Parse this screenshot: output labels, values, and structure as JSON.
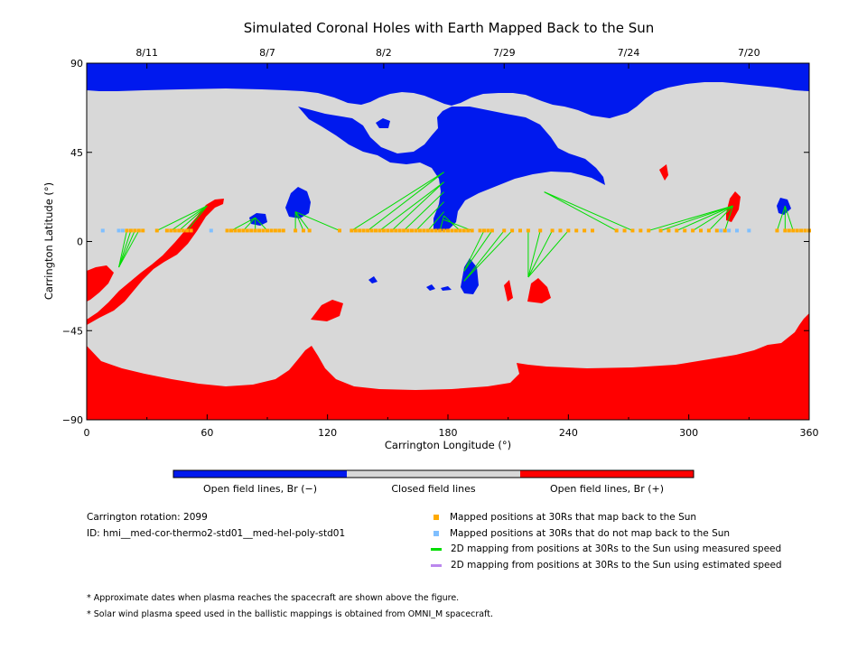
{
  "title": "Simulated Coronal Holes with Earth Mapped Back to the Sun",
  "chart_data": {
    "type": "scatter",
    "title": "Simulated Coronal Holes with Earth Mapped Back to the Sun",
    "xlabel": "Carrington Longitude (°)",
    "ylabel": "Carrington Latitude (°)",
    "xlim": [
      0,
      360
    ],
    "ylim": [
      -90,
      90
    ],
    "xticks": [
      "0",
      "60",
      "120",
      "180",
      "240",
      "300",
      "360"
    ],
    "yticks": [
      "90",
      "45",
      "0",
      "−45",
      "−90"
    ],
    "top_axis_dates": [
      {
        "label": "8/11",
        "lon": 30
      },
      {
        "label": "8/7",
        "lon": 90
      },
      {
        "label": "8/2",
        "lon": 148
      },
      {
        "label": "7/29",
        "lon": 208
      },
      {
        "label": "7/24",
        "lon": 270
      },
      {
        "label": "7/20",
        "lon": 330
      }
    ],
    "colors": {
      "open_negative": "#0019ee",
      "closed": "#d8d8d8",
      "open_positive": "#ff0000",
      "mapped": "#ffaa00",
      "not_mapped": "#7fbfff",
      "measured_line": "#00dd00",
      "estimated_line": "#bb88ee"
    },
    "colorbar_labels": [
      "Open field lines, Br (−)",
      "Closed field lines",
      "Open field lines, Br (+)"
    ],
    "mapped_positions_lat": 5.5,
    "mapped_positions_lon": [
      20,
      22,
      24,
      26,
      28,
      35,
      40,
      42,
      44,
      46,
      48,
      50,
      52,
      70,
      72,
      74,
      76,
      78,
      80,
      82,
      84,
      86,
      88,
      90,
      92,
      94,
      96,
      98,
      104,
      108,
      111,
      126,
      132,
      134,
      136,
      138,
      140,
      142,
      144,
      146,
      148,
      150,
      152,
      154,
      156,
      158,
      160,
      162,
      164,
      166,
      168,
      170,
      172,
      174,
      176,
      178,
      180,
      182,
      184,
      186,
      188,
      190,
      192,
      196,
      198,
      200,
      202,
      208,
      212,
      216,
      220,
      226,
      232,
      236,
      240,
      244,
      248,
      252,
      264,
      268,
      272,
      276,
      280,
      286,
      290,
      294,
      298,
      302,
      306,
      310,
      314,
      318,
      344,
      348,
      350,
      352,
      354,
      356,
      358,
      360
    ],
    "not_mapped_lon": [
      8,
      16,
      18,
      62,
      316,
      320,
      324,
      330
    ],
    "field_lines_measured": [
      {
        "from_lon": 26,
        "to_lat": -13
      },
      {
        "from_lon": 24,
        "to_lat": -13
      },
      {
        "from_lon": 22,
        "to_lat": -13
      },
      {
        "from_lon": 20,
        "to_lat": -13
      },
      {
        "from_lon": 35,
        "to_lat": 18
      },
      {
        "from_lon": 42,
        "to_lat": 18
      },
      {
        "from_lon": 46,
        "to_lat": 18
      },
      {
        "from_lon": 50,
        "to_lat": 18
      },
      {
        "from_lon": 72,
        "to_lat": 12
      },
      {
        "from_lon": 78,
        "to_lat": 12
      },
      {
        "from_lon": 84,
        "to_lat": 12
      },
      {
        "from_lon": 90,
        "to_lat": 12
      },
      {
        "from_lon": 104,
        "to_lat": 15
      },
      {
        "from_lon": 108,
        "to_lat": 15
      },
      {
        "from_lon": 111,
        "to_lat": 15
      },
      {
        "from_lon": 126,
        "to_lat": 15
      },
      {
        "from_lon": 132,
        "to_lat": 35
      },
      {
        "from_lon": 140,
        "to_lat": 35
      },
      {
        "from_lon": 146,
        "to_lat": 30
      },
      {
        "from_lon": 152,
        "to_lat": 30
      },
      {
        "from_lon": 158,
        "to_lat": 25
      },
      {
        "from_lon": 164,
        "to_lat": 20
      },
      {
        "from_lon": 170,
        "to_lat": 15
      },
      {
        "from_lon": 176,
        "to_lat": 13
      },
      {
        "from_lon": 186,
        "to_lat": 13
      },
      {
        "from_lon": 192,
        "to_lat": 11
      },
      {
        "from_lon": 198,
        "to_lat": -15
      },
      {
        "from_lon": 202,
        "to_lat": -15
      },
      {
        "from_lon": 208,
        "to_lat": -20
      },
      {
        "from_lon": 212,
        "to_lat": -20
      },
      {
        "from_lon": 220,
        "to_lat": -18
      },
      {
        "from_lon": 226,
        "to_lat": -18
      },
      {
        "from_lon": 232,
        "to_lat": -18
      },
      {
        "from_lon": 240,
        "to_lat": -18
      },
      {
        "from_lon": 264,
        "to_lat": 25
      },
      {
        "from_lon": 272,
        "to_lat": 25
      },
      {
        "from_lon": 280,
        "to_lat": 18
      },
      {
        "from_lon": 286,
        "to_lat": 18
      },
      {
        "from_lon": 294,
        "to_lat": 18
      },
      {
        "from_lon": 302,
        "to_lat": 18
      },
      {
        "from_lon": 310,
        "to_lat": 18
      },
      {
        "from_lon": 318,
        "to_lat": 18
      },
      {
        "from_lon": 344,
        "to_lat": 18
      },
      {
        "from_lon": 348,
        "to_lat": 18
      },
      {
        "from_lon": 352,
        "to_lat": 18
      }
    ],
    "field_lines_estimated": []
  },
  "info": {
    "rotation": "Carrington rotation: 2099",
    "id": "ID: hmi__med-cor-thermo2-std01__med-hel-poly-std01"
  },
  "legend": {
    "mapped": "Mapped positions at 30Rs that map back to the Sun",
    "not_mapped": "Mapped positions at 30Rs that do not map back to the Sun",
    "measured": "2D mapping from positions at 30Rs to the Sun using measured speed",
    "estimated": "2D mapping from positions at 30Rs to the Sun using estimated speed"
  },
  "notes": [
    "* Approximate dates when plasma reaches the spacecraft are shown above the figure.",
    "* Solar wind plasma speed used in the ballistic mappings is obtained from OMNI_M spacecraft."
  ]
}
